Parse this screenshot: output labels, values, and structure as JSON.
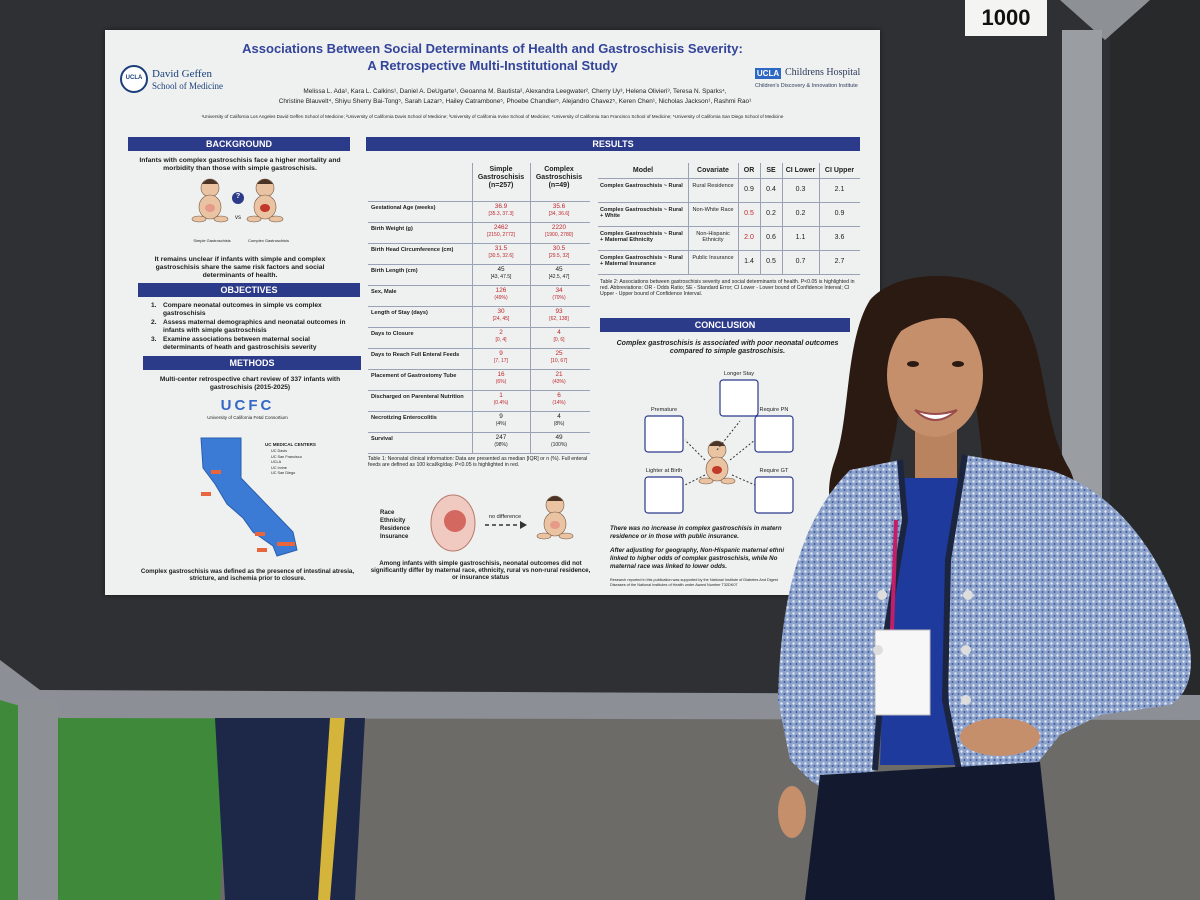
{
  "sign": "1000",
  "poster": {
    "title": [
      "Associations Between Social Determinants of Health and Gastroschisis Severity:",
      "A Retrospective Multi-Institutional Study"
    ],
    "logo_left": {
      "mark": "UCLA",
      "lines": [
        "David Geffen",
        "School of Medicine"
      ]
    },
    "logo_right": {
      "ucla": "UCLA",
      "hospital": "Childrens Hospital",
      "institute": "Children's Discovery & Innovation Institute"
    },
    "authors": [
      "Melissa L. Ada¹, Kara L. Calkins¹, Daniel A. DeUgarte¹, Geoanna M. Bautista², Alexandra Leegwater², Cherry Uy³, Helena Olivieri³, Teresa N. Sparks⁴,",
      "Christine Blauvelt⁴, Shiyu Sherry Bai-Tong⁵, Sarah Lazar⁵, Hailey Catrambone⁵, Phoebe Chandler⁵, Alejandro Chavez⁵, Keren Chen¹, Nicholas Jackson¹, Rashmi Rao¹"
    ],
    "affiliations": "¹University of California Los Angeles David Geffen School of Medicine; ²University of California Davis School of Medicine; ³University of California Irvine School of Medicine; ⁴University of California San Francisco School of Medicine; ⁵University of California San Diego School of Medicine",
    "background": {
      "heading": "BACKGROUND",
      "text": "Infants with complex gastroschisis face a higher mortality and morbidity than those with simple gastroschisis.",
      "figure_labels": {
        "simple": "Simple Gastroschisis",
        "vs": "vs",
        "complex": "Complex Gastroschisis",
        "question": "?"
      },
      "text2": "It remains unclear if infants with simple and complex gastroschisis share the same risk factors and social determinants of health."
    },
    "objectives": {
      "heading": "OBJECTIVES",
      "items": [
        {
          "number": "1.",
          "text": "Compare neonatal outcomes in simple vs complex gastroschisis"
        },
        {
          "number": "2.",
          "text": "Assess maternal demographics and neonatal outcomes in infants with simple gastroschisis"
        },
        {
          "number": "3.",
          "text": "Examine associations between maternal social determinants of heath and gastroschisis severity"
        }
      ]
    },
    "methods": {
      "heading": "METHODS",
      "text": "Multi-center retrospective chart review of 337 infants with gastroschisis (2015-2025)",
      "consortium_logo": "UCFC",
      "consortium_name": "University of California Fetal Consortium",
      "map_legend_title": "UC MEDICAL CENTERS",
      "map_legend": [
        "UC Davis",
        "UC San Francisco",
        "UCLA",
        "UC Irvine",
        "UC San Diego"
      ],
      "footer": "Complex gastroschisis was defined as the presence of intestinal atresia, stricture, and ischemia prior to closure."
    },
    "results": {
      "heading": "RESULTS",
      "table1": {
        "columns": [
          "Simple Gastroschisis (n=257)",
          "Complex Gastroschisis (n=49)"
        ],
        "rows": [
          {
            "label": "Gestational Age (weeks)",
            "simple": [
              "36.9",
              "[35.3, 37.3]"
            ],
            "complex": [
              "35.6",
              "[34, 36.6]"
            ],
            "significant": true
          },
          {
            "label": "Birth Weight (g)",
            "simple": [
              "2462",
              "[2150, 2772]"
            ],
            "complex": [
              "2220",
              "[1900, 2780]"
            ],
            "significant": true
          },
          {
            "label": "Birth Head Circumference (cm)",
            "simple": [
              "31.5",
              "[30.5, 32.6]"
            ],
            "complex": [
              "30.5",
              "[29.5, 32]"
            ],
            "significant": true
          },
          {
            "label": "Birth Length (cm)",
            "simple": [
              "45",
              "[43, 47.5]"
            ],
            "complex": [
              "45",
              "[42.5, 47]"
            ],
            "significant": false
          },
          {
            "label": "Sex, Male",
            "simple": [
              "126",
              "(49%)"
            ],
            "complex": [
              "34",
              "(70%)"
            ],
            "significant": true
          },
          {
            "label": "Length of Stay (days)",
            "simple": [
              "30",
              "[24, 45]"
            ],
            "complex": [
              "93",
              "[62, 138]"
            ],
            "significant": true
          },
          {
            "label": "Days to Closure",
            "simple": [
              "2",
              "[0, 4]"
            ],
            "complex": [
              "4",
              "[0, 6]"
            ],
            "significant": true
          },
          {
            "label": "Days to Reach Full Enteral Feeds",
            "simple": [
              "9",
              "[7, 17]"
            ],
            "complex": [
              "25",
              "[10, 67]"
            ],
            "significant": true
          },
          {
            "label": "Placement of Gastrostomy Tube",
            "simple": [
              "16",
              "(6%)"
            ],
            "complex": [
              "21",
              "(43%)"
            ],
            "significant": true
          },
          {
            "label": "Discharged on Parenteral Nutrition",
            "simple": [
              "1",
              "(0.4%)"
            ],
            "complex": [
              "6",
              "(14%)"
            ],
            "significant": true
          },
          {
            "label": "Necrotizing Enterocolitis",
            "simple": [
              "9",
              "(4%)"
            ],
            "complex": [
              "4",
              "(8%)"
            ],
            "significant": false
          },
          {
            "label": "Survival",
            "simple": [
              "247",
              "(98%)"
            ],
            "complex": [
              "49",
              "(100%)"
            ],
            "significant": false
          }
        ],
        "caption": "Table 1: Neonatal clinical information: Data are presented as median [IQR] or n (%). Full enteral feeds are defined as 100 kcal/kg/day. P<0.05 is highlighted in red."
      },
      "race_figure": {
        "labels": [
          "Race",
          "Ethnicity",
          "Residence",
          "Insurance"
        ],
        "arrow": "no difference"
      },
      "race_text": "Among infants with simple gastroschisis, neonatal outcomes did not significantly differ by maternal race, ethnicity, rural vs non-rural residence, or insurance status",
      "table2": {
        "columns": [
          "Model",
          "Covariate",
          "OR",
          "SE",
          "CI Lower",
          "CI Upper"
        ],
        "rows": [
          {
            "model": "Complex Gastroschisis ~ Rural",
            "covariate": "Rural Residence",
            "or": "0.9",
            "se": "0.4",
            "ci_lower": "0.3",
            "ci_upper": "2.1",
            "significant": false
          },
          {
            "model": "Complex Gastroschisis ~ Rural + White",
            "covariate": "Non-White Race",
            "or": "0.5",
            "se": "0.2",
            "ci_lower": "0.2",
            "ci_upper": "0.9",
            "significant": true
          },
          {
            "model": "Complex Gastroschisis ~ Rural + Maternal Ethnicity",
            "covariate": "Non-Hispanic Ethnicity",
            "or": "2.0",
            "se": "0.6",
            "ci_lower": "1.1",
            "ci_upper": "3.6",
            "significant": true
          },
          {
            "model": "Complex Gastroschisis ~ Rural + Maternal Insurance",
            "covariate": "Public Insurance",
            "or": "1.4",
            "se": "0.5",
            "ci_lower": "0.7",
            "ci_upper": "2.7",
            "significant": false
          }
        ],
        "caption": "Table 2: Associations between gastroschisis severity and social determinants of health. P<0.05 is highlighted in red. Abbreviations: OR - Odds Ratio; SE - Standard Error; CI Lower - Lower bound of Confidence Interval; CI Upper - Upper bound of Confidence Interval."
      }
    },
    "conclusion": {
      "heading": "CONCLUSION",
      "lead": "Complex gastroschisis is associated with poor neonatal outcomes compared to simple gastroschisis.",
      "figure_labels": [
        "Longer Stay",
        "Premature",
        "Require PN",
        "Lighter at Birth",
        "Require GT"
      ],
      "finding1": [
        "There was no increase in complex gastroschisis in matern",
        "residence or in those with public insurance."
      ],
      "finding2": [
        "After adjusting for geography, Non-Hispanic maternal ethni",
        "linked to higher odds of complex gastroschisis, while No",
        "maternal race was linked to lower odds."
      ],
      "funding": [
        "Research reported in this publication was supported by the National Institute of Diabetes And Digest",
        "Diseases of the National Institutes of Health under Award Number T32DK07"
      ]
    }
  }
}
